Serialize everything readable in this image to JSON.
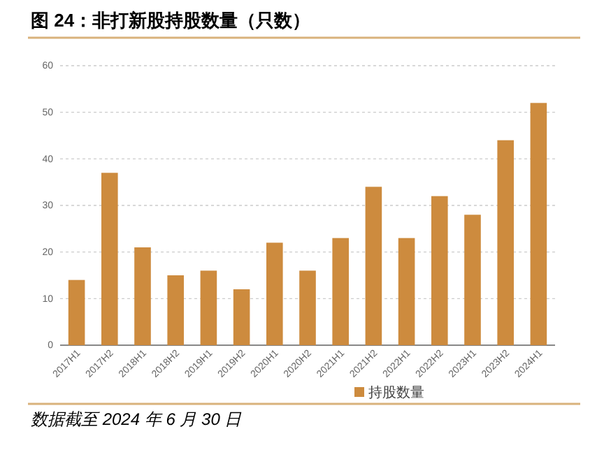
{
  "chart_data": {
    "type": "bar",
    "title": "图 24：非打新股持股数量（只数）",
    "categories": [
      "2017H1",
      "2017H2",
      "2018H1",
      "2018H2",
      "2019H1",
      "2019H2",
      "2020H1",
      "2020H2",
      "2021H1",
      "2021H2",
      "2022H1",
      "2022H2",
      "2023H1",
      "2023H2",
      "2024H1"
    ],
    "series": [
      {
        "name": "持股数量",
        "color": "#cd8b3e",
        "values": [
          14,
          37,
          21,
          15,
          16,
          12,
          22,
          16,
          23,
          34,
          23,
          32,
          28,
          44,
          52
        ]
      }
    ],
    "ylim": [
      0,
      60
    ],
    "yticks": [
      0,
      10,
      20,
      30,
      40,
      50,
      60
    ],
    "grid": "y",
    "legend": "bottom",
    "annotations": [
      "数据截至 2024 年 6 月 30 日"
    ]
  }
}
